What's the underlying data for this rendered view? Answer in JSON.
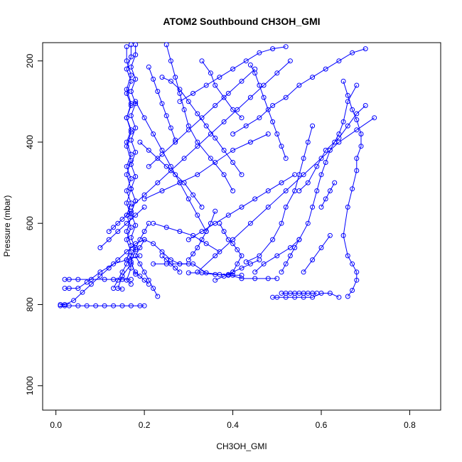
{
  "chart_data": {
    "type": "line",
    "title": "ATOM2 Southbound CH3OH_GMI",
    "xlabel": "CH3OH_GMI",
    "ylabel": "Pressure (mbar)",
    "xlim": [
      -0.03,
      0.87
    ],
    "ylim": [
      1060,
      155
    ],
    "y_reversed": true,
    "x_ticks": [
      0.0,
      0.2,
      0.4,
      0.6,
      0.8
    ],
    "x_tick_labels": [
      "0.0",
      "0.2",
      "0.4",
      "0.6",
      "0.8"
    ],
    "y_ticks": [
      200,
      400,
      600,
      800,
      1000
    ],
    "y_tick_labels": [
      "200",
      "400",
      "600",
      "800",
      "1000"
    ],
    "grid": false,
    "series_color": "#0000ff",
    "marker": "open-circle",
    "series": [
      {
        "x": [
          0.17,
          0.17,
          0.16,
          0.17,
          0.16,
          0.17,
          0.16,
          0.17,
          0.16,
          0.17,
          0.16,
          0.17,
          0.16,
          0.17,
          0.16,
          0.17,
          0.16,
          0.17,
          0.17,
          0.15,
          0.14,
          0.15
        ],
        "y": [
          160,
          190,
          220,
          250,
          280,
          310,
          340,
          370,
          400,
          430,
          460,
          490,
          520,
          550,
          580,
          610,
          640,
          670,
          700,
          730,
          760,
          762
        ]
      },
      {
        "x": [
          0.18,
          0.18,
          0.17,
          0.18,
          0.17,
          0.18,
          0.17,
          0.18,
          0.17,
          0.18,
          0.17,
          0.18,
          0.17,
          0.18,
          0.17,
          0.18,
          0.17,
          0.18,
          0.17,
          0.18
        ],
        "y": [
          160,
          185,
          215,
          245,
          275,
          305,
          335,
          365,
          395,
          425,
          455,
          485,
          515,
          545,
          575,
          605,
          635,
          665,
          695,
          725
        ]
      },
      {
        "x": [
          0.16,
          0.16,
          0.17,
          0.16,
          0.17,
          0.16,
          0.17,
          0.16,
          0.17,
          0.16,
          0.17,
          0.16,
          0.17,
          0.16,
          0.17,
          0.16,
          0.17,
          0.16,
          0.17
        ],
        "y": [
          165,
          200,
          235,
          270,
          305,
          340,
          375,
          410,
          445,
          480,
          515,
          550,
          585,
          620,
          655,
          690,
          710,
          740,
          750
        ]
      },
      {
        "x": [
          0.01,
          0.02,
          0.04,
          0.06,
          0.08,
          0.1,
          0.12,
          0.14,
          0.16,
          0.18,
          0.2,
          0.22,
          0.24,
          0.26,
          0.28,
          0.3
        ],
        "y": [
          800,
          800,
          790,
          770,
          750,
          730,
          710,
          690,
          670,
          650,
          640,
          650,
          670,
          690,
          700,
          700
        ]
      },
      {
        "x": [
          0.01,
          0.02,
          0.03,
          0.05,
          0.07,
          0.09,
          0.11,
          0.13,
          0.15,
          0.17,
          0.19,
          0.2
        ],
        "y": [
          803,
          803,
          803,
          803,
          803,
          803,
          803,
          803,
          803,
          803,
          803,
          803
        ]
      },
      {
        "x": [
          0.02,
          0.03,
          0.05,
          0.08,
          0.11,
          0.13,
          0.15,
          0.17
        ],
        "y": [
          738,
          738,
          738,
          738,
          738,
          738,
          738,
          738
        ]
      },
      {
        "x": [
          0.02,
          0.03,
          0.05,
          0.07,
          0.1,
          0.13,
          0.16,
          0.19
        ],
        "y": [
          760,
          760,
          760,
          745,
          720,
          700,
          690,
          680
        ]
      },
      {
        "x": [
          0.13,
          0.14,
          0.15,
          0.16,
          0.17,
          0.18,
          0.19,
          0.2,
          0.21
        ],
        "y": [
          760,
          740,
          720,
          700,
          680,
          660,
          640,
          620,
          600
        ]
      },
      {
        "x": [
          0.22,
          0.25,
          0.28,
          0.31,
          0.34,
          0.37,
          0.4,
          0.42
        ],
        "y": [
          700,
          700,
          700,
          700,
          722,
          726,
          728,
          728
        ]
      },
      {
        "x": [
          0.3,
          0.33,
          0.36,
          0.39,
          0.42,
          0.45,
          0.48,
          0.5
        ],
        "y": [
          722,
          722,
          726,
          726,
          736,
          736,
          736,
          736
        ]
      },
      {
        "x": [
          0.49,
          0.5,
          0.52,
          0.54,
          0.56,
          0.58,
          0.6,
          0.62,
          0.64
        ],
        "y": [
          782,
          782,
          782,
          782,
          782,
          782,
          772,
          772,
          782
        ]
      },
      {
        "x": [
          0.51,
          0.52,
          0.53,
          0.54,
          0.55,
          0.56,
          0.57,
          0.58,
          0.59
        ],
        "y": [
          772,
          772,
          772,
          772,
          772,
          772,
          772,
          772,
          772
        ]
      },
      {
        "x": [
          0.66,
          0.67,
          0.68,
          0.68,
          0.67,
          0.66,
          0.65,
          0.66,
          0.67,
          0.68,
          0.68,
          0.69,
          0.69,
          0.68,
          0.67,
          0.66,
          0.65
        ],
        "y": [
          780,
          765,
          740,
          720,
          700,
          680,
          630,
          560,
          515,
          470,
          440,
          410,
          380,
          345,
          320,
          285,
          250
        ]
      },
      {
        "x": [
          0.45,
          0.47,
          0.5,
          0.53,
          0.55,
          0.57,
          0.58,
          0.59,
          0.6,
          0.61,
          0.62,
          0.63,
          0.64,
          0.65,
          0.66,
          0.68
        ],
        "y": [
          720,
          700,
          680,
          660,
          640,
          600,
          560,
          520,
          480,
          450,
          420,
          400,
          380,
          350,
          300,
          260
        ]
      },
      {
        "x": [
          0.43,
          0.46,
          0.49,
          0.51,
          0.52,
          0.54,
          0.55,
          0.56,
          0.57,
          0.58
        ],
        "y": [
          695,
          680,
          640,
          600,
          560,
          520,
          480,
          440,
          400,
          360
        ]
      },
      {
        "x": [
          0.4,
          0.43,
          0.46,
          0.49,
          0.52,
          0.55,
          0.58,
          0.61,
          0.64,
          0.67,
          0.7
        ],
        "y": [
          380,
          360,
          340,
          310,
          290,
          260,
          240,
          220,
          200,
          180,
          170
        ]
      },
      {
        "x": [
          0.55,
          0.57,
          0.59,
          0.61,
          0.64,
          0.66,
          0.68,
          0.7
        ],
        "y": [
          520,
          500,
          460,
          420,
          390,
          360,
          330,
          310
        ]
      },
      {
        "x": [
          0.32,
          0.36,
          0.4,
          0.44,
          0.48,
          0.52,
          0.56,
          0.6,
          0.64,
          0.68,
          0.72
        ],
        "y": [
          720,
          680,
          640,
          600,
          560,
          520,
          480,
          440,
          400,
          370,
          340
        ]
      },
      {
        "x": [
          0.2,
          0.24,
          0.28,
          0.32,
          0.36,
          0.4,
          0.44,
          0.48
        ],
        "y": [
          540,
          520,
          500,
          480,
          450,
          420,
          400,
          380
        ]
      },
      {
        "x": [
          0.21,
          0.24,
          0.27,
          0.3,
          0.33,
          0.36,
          0.39,
          0.42,
          0.45
        ],
        "y": [
          460,
          430,
          400,
          370,
          340,
          310,
          280,
          250,
          220
        ]
      },
      {
        "x": [
          0.24,
          0.26,
          0.28,
          0.3,
          0.32,
          0.34,
          0.36,
          0.38,
          0.4,
          0.42
        ],
        "y": [
          240,
          250,
          270,
          300,
          330,
          360,
          390,
          420,
          450,
          480
        ]
      },
      {
        "x": [
          0.25,
          0.26,
          0.27,
          0.28,
          0.29,
          0.3,
          0.32,
          0.35,
          0.38,
          0.4
        ],
        "y": [
          160,
          200,
          240,
          280,
          320,
          360,
          400,
          440,
          480,
          520
        ]
      },
      {
        "x": [
          0.37,
          0.38,
          0.39,
          0.4,
          0.41,
          0.42,
          0.41,
          0.4,
          0.39
        ],
        "y": [
          600,
          620,
          640,
          650,
          665,
          680,
          700,
          720,
          728
        ]
      },
      {
        "x": [
          0.3,
          0.33,
          0.36,
          0.39,
          0.42,
          0.45,
          0.48,
          0.51,
          0.54
        ],
        "y": [
          640,
          620,
          600,
          580,
          560,
          540,
          520,
          500,
          480
        ]
      },
      {
        "x": [
          0.18,
          0.2,
          0.22,
          0.24,
          0.26,
          0.28,
          0.3,
          0.32,
          0.34
        ],
        "y": [
          300,
          340,
          380,
          420,
          460,
          500,
          540,
          580,
          620
        ]
      },
      {
        "x": [
          0.19,
          0.21,
          0.23,
          0.25,
          0.27,
          0.29,
          0.31,
          0.33
        ],
        "y": [
          400,
          420,
          440,
          460,
          480,
          500,
          530,
          560
        ]
      },
      {
        "x": [
          0.17,
          0.2,
          0.23,
          0.26,
          0.29,
          0.32,
          0.35,
          0.38,
          0.41,
          0.44,
          0.47,
          0.5,
          0.53
        ],
        "y": [
          560,
          530,
          500,
          470,
          440,
          410,
          380,
          350,
          320,
          290,
          260,
          230,
          200
        ]
      },
      {
        "x": [
          0.28,
          0.31,
          0.34,
          0.37,
          0.4,
          0.43,
          0.46,
          0.49,
          0.52
        ],
        "y": [
          300,
          280,
          260,
          240,
          220,
          200,
          180,
          170,
          165
        ]
      },
      {
        "x": [
          0.22,
          0.25,
          0.28,
          0.31,
          0.34,
          0.37
        ],
        "y": [
          600,
          610,
          620,
          630,
          650,
          670
        ]
      },
      {
        "x": [
          0.3,
          0.31,
          0.32,
          0.33,
          0.34,
          0.35,
          0.36
        ],
        "y": [
          690,
          675,
          660,
          640,
          620,
          600,
          570
        ]
      },
      {
        "x": [
          0.21,
          0.22,
          0.23,
          0.24,
          0.25,
          0.26,
          0.27
        ],
        "y": [
          215,
          245,
          275,
          305,
          335,
          365,
          395
        ]
      },
      {
        "x": [
          0.2,
          0.19,
          0.18,
          0.19,
          0.2,
          0.21,
          0.22,
          0.23
        ],
        "y": [
          640,
          660,
          680,
          700,
          720,
          740,
          760,
          780
        ]
      },
      {
        "x": [
          0.1,
          0.12,
          0.14,
          0.16,
          0.18,
          0.2
        ],
        "y": [
          660,
          640,
          620,
          600,
          580,
          560
        ]
      },
      {
        "x": [
          0.12,
          0.13,
          0.14,
          0.15,
          0.16,
          0.17
        ],
        "y": [
          620,
          610,
          600,
          590,
          580,
          570
        ]
      },
      {
        "x": [
          0.33,
          0.35,
          0.36,
          0.38,
          0.4,
          0.42
        ],
        "y": [
          200,
          230,
          260,
          290,
          320,
          340
        ]
      },
      {
        "x": [
          0.44,
          0.45,
          0.46,
          0.47,
          0.48,
          0.49,
          0.5,
          0.51,
          0.52
        ],
        "y": [
          210,
          230,
          260,
          290,
          320,
          350,
          380,
          410,
          440
        ]
      },
      {
        "x": [
          0.51,
          0.52,
          0.53,
          0.54,
          0.55
        ],
        "y": [
          720,
          700,
          680,
          660,
          640
        ]
      },
      {
        "x": [
          0.36,
          0.38,
          0.4,
          0.42,
          0.44,
          0.46
        ],
        "y": [
          740,
          730,
          720,
          710,
          700,
          690
        ]
      },
      {
        "x": [
          0.24,
          0.25,
          0.26,
          0.27,
          0.28
        ],
        "y": [
          680,
          690,
          700,
          710,
          720
        ]
      },
      {
        "x": [
          0.18,
          0.19,
          0.2,
          0.21
        ],
        "y": [
          720,
          730,
          740,
          750
        ]
      },
      {
        "x": [
          0.56,
          0.58,
          0.6,
          0.62
        ],
        "y": [
          720,
          690,
          660,
          630
        ]
      },
      {
        "x": [
          0.6,
          0.61,
          0.62,
          0.63
        ],
        "y": [
          560,
          540,
          520,
          500
        ]
      }
    ]
  }
}
